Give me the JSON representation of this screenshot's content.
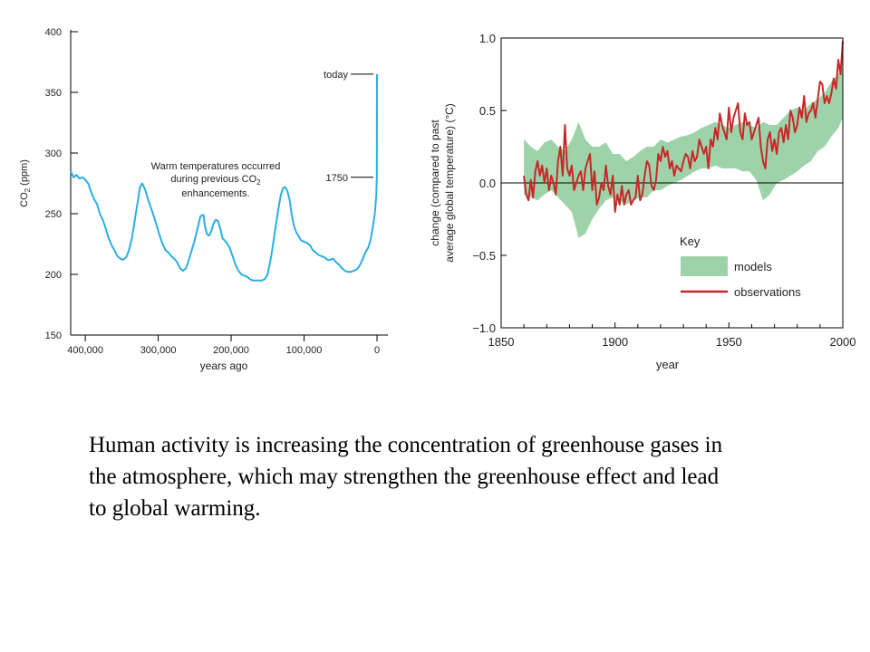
{
  "caption": "Human activity is increasing the concentration of greenhouse gases in the atmosphere, which may strengthen the greenhouse effect and lead to global warming.",
  "colors": {
    "co2_line": "#2aaee6",
    "observations_line": "#c62828",
    "models_band": "#9ed3a9",
    "axis": "#000000"
  },
  "chart_data": [
    {
      "type": "line",
      "title": "",
      "xlabel": "years ago",
      "ylabel_main": "CO",
      "ylabel_sub": "2",
      "ylabel_unit": " (ppm)",
      "xlim": [
        420000,
        0
      ],
      "ylim": [
        150,
        400
      ],
      "x_ticks": [
        400000,
        300000,
        200000,
        100000,
        0
      ],
      "x_tick_labels": [
        "400,000",
        "300,000",
        "200,000",
        "100,000",
        "0"
      ],
      "y_ticks": [
        150,
        200,
        250,
        300,
        350,
        400
      ],
      "y_tick_labels": [
        "150",
        "200",
        "250",
        "300",
        "350",
        "400"
      ],
      "annotation_lines": [
        "Warm temperatures occurred",
        "during previous CO",
        "enhancements."
      ],
      "annotation_sub": "2",
      "markers": [
        {
          "label": "today",
          "value": 365
        },
        {
          "label": "1750",
          "value": 280
        }
      ],
      "series": [
        {
          "x": [
            420000,
            416000,
            412000,
            408000,
            404000,
            400000,
            396000,
            392000,
            388000,
            384000,
            380000,
            376000,
            372000,
            368000,
            364000,
            360000,
            356000,
            352000,
            348000,
            344000,
            340000,
            336000,
            332000,
            328000,
            325000,
            322000,
            318000,
            314000,
            310000,
            306000,
            302000,
            298000,
            294000,
            290000,
            286000,
            282000,
            278000,
            274000,
            270000,
            266000,
            262000,
            258000,
            254000,
            250000,
            246000,
            242000,
            238000,
            236000,
            233000,
            230000,
            227000,
            224000,
            221000,
            218000,
            215000,
            212000,
            209000,
            206000,
            202000,
            198000,
            194000,
            190000,
            186000,
            182000,
            178000,
            174000,
            170000,
            166000,
            162000,
            158000,
            154000,
            150000,
            145000,
            140000,
            135000,
            132000,
            129000,
            126000,
            123000,
            120000,
            117000,
            114000,
            111000,
            108000,
            104000,
            100000,
            96000,
            92000,
            88000,
            84000,
            80000,
            76000,
            72000,
            68000,
            64000,
            60000,
            56000,
            52000,
            48000,
            44000,
            40000,
            36000,
            32000,
            28000,
            24000,
            20000,
            16000,
            12000,
            9000,
            6000,
            3000,
            1000
          ],
          "y": [
            285,
            280,
            282,
            279,
            280,
            278,
            275,
            268,
            262,
            258,
            250,
            245,
            238,
            230,
            224,
            220,
            215,
            213,
            212,
            214,
            220,
            230,
            245,
            260,
            272,
            275,
            270,
            262,
            255,
            248,
            240,
            232,
            225,
            220,
            218,
            215,
            213,
            210,
            205,
            203,
            205,
            212,
            220,
            228,
            238,
            248,
            249,
            240,
            233,
            232,
            236,
            242,
            245,
            244,
            238,
            230,
            228,
            226,
            222,
            215,
            208,
            203,
            200,
            199,
            198,
            196,
            195,
            195,
            195,
            195,
            196,
            200,
            215,
            235,
            255,
            265,
            271,
            272,
            269,
            262,
            250,
            240,
            235,
            232,
            228,
            227,
            226,
            224,
            220,
            218,
            216,
            215,
            214,
            212,
            212,
            213,
            210,
            208,
            205,
            203,
            202,
            202,
            203,
            204,
            207,
            212,
            218,
            222,
            228,
            238,
            250,
            265
          ]
        },
        {
          "x": [
            1000,
            500,
            250,
            0
          ],
          "y": [
            265,
            275,
            280,
            365
          ]
        }
      ]
    },
    {
      "type": "line",
      "title": "",
      "xlabel": "year",
      "ylabel_line1": "change (compared to past",
      "ylabel_line2": "average global temperature) (°C)",
      "xlim": [
        1850,
        2000
      ],
      "ylim": [
        -1.0,
        1.0
      ],
      "x_ticks": [
        1850,
        1900,
        1950,
        2000
      ],
      "x_tick_labels": [
        "1850",
        "1900",
        "1950",
        "2000"
      ],
      "y_ticks": [
        1.0,
        0.5,
        0.0,
        -0.5,
        -1.0
      ],
      "y_tick_labels": [
        "1.0",
        "0.5",
        "0.0",
        "−0.5",
        "−1.0"
      ],
      "legend_title": "Key",
      "legend_placement": "bottom-right",
      "series": [
        {
          "name": "models",
          "x": [
            1860,
            1863,
            1866,
            1869,
            1872,
            1875,
            1878,
            1881,
            1884,
            1887,
            1890,
            1893,
            1896,
            1899,
            1902,
            1905,
            1908,
            1911,
            1914,
            1917,
            1920,
            1923,
            1926,
            1929,
            1932,
            1935,
            1938,
            1941,
            1944,
            1947,
            1950,
            1953,
            1956,
            1959,
            1962,
            1965,
            1968,
            1971,
            1974,
            1977,
            1980,
            1983,
            1986,
            1989,
            1992,
            1995,
            1998,
            2000
          ],
          "lower": [
            -0.08,
            -0.1,
            -0.12,
            -0.08,
            -0.05,
            -0.1,
            -0.15,
            -0.2,
            -0.38,
            -0.35,
            -0.25,
            -0.18,
            -0.12,
            -0.1,
            -0.12,
            -0.15,
            -0.12,
            -0.1,
            -0.1,
            -0.05,
            -0.05,
            -0.02,
            0.0,
            0.02,
            0.05,
            0.08,
            0.1,
            0.1,
            0.12,
            0.1,
            0.1,
            0.1,
            0.08,
            0.08,
            0.02,
            -0.12,
            -0.08,
            0.0,
            0.02,
            0.05,
            0.08,
            0.12,
            0.15,
            0.22,
            0.25,
            0.32,
            0.38,
            0.45
          ],
          "upper": [
            0.3,
            0.25,
            0.22,
            0.28,
            0.3,
            0.25,
            0.22,
            0.3,
            0.42,
            0.3,
            0.25,
            0.25,
            0.28,
            0.2,
            0.2,
            0.15,
            0.18,
            0.22,
            0.25,
            0.25,
            0.3,
            0.28,
            0.3,
            0.32,
            0.33,
            0.35,
            0.38,
            0.4,
            0.42,
            0.4,
            0.38,
            0.4,
            0.42,
            0.4,
            0.38,
            0.42,
            0.4,
            0.4,
            0.45,
            0.5,
            0.52,
            0.5,
            0.55,
            0.58,
            0.62,
            0.7,
            0.75,
            0.8
          ]
        },
        {
          "name": "observations",
          "x": [
            1860,
            1861,
            1862,
            1863,
            1864,
            1865,
            1866,
            1867,
            1868,
            1869,
            1870,
            1871,
            1872,
            1873,
            1874,
            1875,
            1876,
            1877,
            1878,
            1879,
            1880,
            1881,
            1882,
            1883,
            1884,
            1885,
            1886,
            1887,
            1888,
            1889,
            1890,
            1891,
            1892,
            1893,
            1894,
            1895,
            1896,
            1897,
            1898,
            1899,
            1900,
            1901,
            1902,
            1903,
            1904,
            1905,
            1906,
            1907,
            1908,
            1909,
            1910,
            1911,
            1912,
            1913,
            1914,
            1915,
            1916,
            1917,
            1918,
            1919,
            1920,
            1921,
            1922,
            1923,
            1924,
            1925,
            1926,
            1927,
            1928,
            1929,
            1930,
            1931,
            1932,
            1933,
            1934,
            1935,
            1936,
            1937,
            1938,
            1939,
            1940,
            1941,
            1942,
            1943,
            1944,
            1945,
            1946,
            1947,
            1948,
            1949,
            1950,
            1951,
            1952,
            1953,
            1954,
            1955,
            1956,
            1957,
            1958,
            1959,
            1960,
            1961,
            1962,
            1963,
            1964,
            1965,
            1966,
            1967,
            1968,
            1969,
            1970,
            1971,
            1972,
            1973,
            1974,
            1975,
            1976,
            1977,
            1978,
            1979,
            1980,
            1981,
            1982,
            1983,
            1984,
            1985,
            1986,
            1987,
            1988,
            1989,
            1990,
            1991,
            1992,
            1993,
            1994,
            1995,
            1996,
            1997,
            1998,
            1999,
            2000
          ],
          "y": [
            0.05,
            -0.08,
            -0.12,
            0.02,
            -0.1,
            0.08,
            0.15,
            0.05,
            0.12,
            0.0,
            0.1,
            -0.05,
            0.05,
            0.0,
            -0.08,
            0.15,
            0.25,
            0.05,
            0.4,
            0.1,
            0.05,
            0.12,
            -0.05,
            0.0,
            0.05,
            0.08,
            -0.05,
            0.1,
            0.15,
            0.2,
            -0.05,
            0.08,
            -0.15,
            -0.1,
            0.0,
            -0.05,
            0.12,
            -0.02,
            -0.08,
            0.05,
            -0.2,
            -0.08,
            -0.15,
            -0.02,
            -0.15,
            -0.08,
            -0.05,
            -0.15,
            -0.12,
            -0.1,
            0.05,
            -0.12,
            -0.08,
            0.05,
            0.15,
            0.12,
            -0.02,
            -0.05,
            0.02,
            0.2,
            0.15,
            0.25,
            0.18,
            0.22,
            0.1,
            0.15,
            0.05,
            0.12,
            0.1,
            0.08,
            0.15,
            0.2,
            0.18,
            0.1,
            0.22,
            0.15,
            0.18,
            0.3,
            0.25,
            0.2,
            0.25,
            0.1,
            0.3,
            0.25,
            0.38,
            0.3,
            0.48,
            0.4,
            0.35,
            0.3,
            0.52,
            0.35,
            0.45,
            0.5,
            0.55,
            0.35,
            0.3,
            0.48,
            0.4,
            0.42,
            0.3,
            0.35,
            0.4,
            0.45,
            0.25,
            0.15,
            0.1,
            0.3,
            0.35,
            0.22,
            0.3,
            0.2,
            0.35,
            0.38,
            0.28,
            0.4,
            0.3,
            0.5,
            0.45,
            0.35,
            0.4,
            0.52,
            0.45,
            0.6,
            0.42,
            0.48,
            0.5,
            0.55,
            0.45,
            0.58,
            0.7,
            0.68,
            0.55,
            0.6,
            0.55,
            0.62,
            0.72,
            0.65,
            0.85,
            0.75,
            0.98
          ]
        }
      ]
    }
  ]
}
